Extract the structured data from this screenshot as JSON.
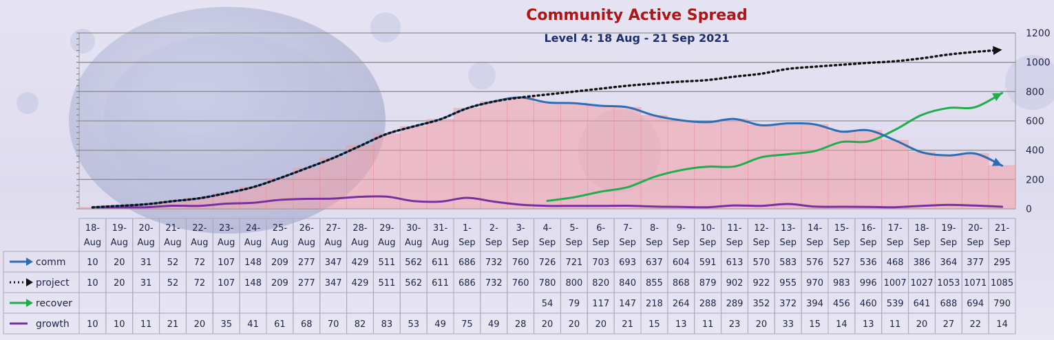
{
  "chart_data": {
    "type": "line",
    "title": "Community Active  Spread",
    "subtitle": "Level 4: 18 Aug - 21 Sep 2021",
    "categories": [
      [
        "18-",
        "Aug"
      ],
      [
        "19-",
        "Aug"
      ],
      [
        "20-",
        "Aug"
      ],
      [
        "21-",
        "Aug"
      ],
      [
        "22-",
        "Aug"
      ],
      [
        "23-",
        "Aug"
      ],
      [
        "24-",
        "Aug"
      ],
      [
        "25-",
        "Aug"
      ],
      [
        "26-",
        "Aug"
      ],
      [
        "27-",
        "Aug"
      ],
      [
        "28-",
        "Aug"
      ],
      [
        "29-",
        "Aug"
      ],
      [
        "30-",
        "Aug"
      ],
      [
        "31-",
        "Aug"
      ],
      [
        "1-",
        "Sep"
      ],
      [
        "2-",
        "Sep"
      ],
      [
        "3-",
        "Sep"
      ],
      [
        "4-",
        "Sep"
      ],
      [
        "5-",
        "Sep"
      ],
      [
        "6-",
        "Sep"
      ],
      [
        "7-",
        "Sep"
      ],
      [
        "8-",
        "Sep"
      ],
      [
        "9-",
        "Sep"
      ],
      [
        "10-",
        "Sep"
      ],
      [
        "11-",
        "Sep"
      ],
      [
        "12-",
        "Sep"
      ],
      [
        "13-",
        "Sep"
      ],
      [
        "14-",
        "Sep"
      ],
      [
        "15-",
        "Sep"
      ],
      [
        "16-",
        "Sep"
      ],
      [
        "17-",
        "Sep"
      ],
      [
        "18-",
        "Sep"
      ],
      [
        "19-",
        "Sep"
      ],
      [
        "20-",
        "Sep"
      ],
      [
        "21-",
        "Sep"
      ]
    ],
    "ylim": [
      0,
      1200
    ],
    "yticks": [
      0,
      200,
      400,
      600,
      800,
      1000,
      1200
    ],
    "grid": true,
    "legend_placement": "table-left",
    "series": [
      {
        "name": "comm",
        "color": "#2e6db4",
        "style": "solid-arrow",
        "values": [
          10,
          20,
          31,
          52,
          72,
          107,
          148,
          209,
          277,
          347,
          429,
          511,
          562,
          611,
          686,
          732,
          760,
          726,
          721,
          703,
          693,
          637,
          604,
          591,
          613,
          570,
          583,
          576,
          527,
          536,
          468,
          386,
          364,
          377,
          295
        ]
      },
      {
        "name": "project",
        "color": "#111111",
        "style": "dotted-arrow",
        "values": [
          10,
          20,
          31,
          52,
          72,
          107,
          148,
          209,
          277,
          347,
          429,
          511,
          562,
          611,
          686,
          732,
          760,
          780,
          800,
          820,
          840,
          855,
          868,
          879,
          902,
          922,
          955,
          970,
          983,
          996,
          1007,
          1027,
          1053,
          1071,
          1085
        ]
      },
      {
        "name": "recover",
        "color": "#1fae4b",
        "style": "solid-arrow",
        "values": [
          null,
          null,
          null,
          null,
          null,
          null,
          null,
          null,
          null,
          null,
          null,
          null,
          null,
          null,
          null,
          null,
          null,
          54,
          79,
          117,
          147,
          218,
          264,
          288,
          289,
          352,
          372,
          394,
          456,
          460,
          539,
          641,
          688,
          694,
          790
        ]
      },
      {
        "name": "growth",
        "color": "#7a2fa0",
        "style": "solid",
        "values": [
          10,
          10,
          11,
          21,
          20,
          35,
          41,
          61,
          68,
          70,
          82,
          83,
          53,
          49,
          75,
          49,
          28,
          20,
          20,
          20,
          21,
          15,
          13,
          11,
          23,
          20,
          33,
          15,
          14,
          13,
          11,
          20,
          27,
          22,
          14
        ]
      }
    ],
    "area_series": "comm",
    "area_color": "#f4a0a8"
  }
}
